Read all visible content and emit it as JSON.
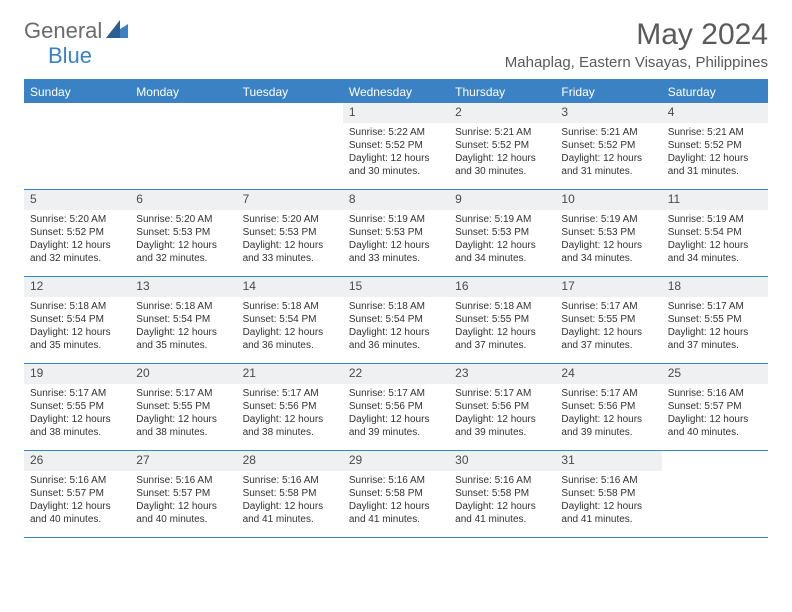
{
  "logo": {
    "text1": "General",
    "text2": "Blue"
  },
  "title": "May 2024",
  "location": "Mahaplag, Eastern Visayas, Philippines",
  "colors": {
    "accent": "#3a82c4",
    "header_text": "#ffffff",
    "daynum_bg": "#eef0f2",
    "body_text": "#333333",
    "title_text": "#5a5a5a"
  },
  "dow": [
    "Sunday",
    "Monday",
    "Tuesday",
    "Wednesday",
    "Thursday",
    "Friday",
    "Saturday"
  ],
  "weeks": [
    [
      {
        "n": "",
        "sr": "",
        "ss": "",
        "dl": ""
      },
      {
        "n": "",
        "sr": "",
        "ss": "",
        "dl": ""
      },
      {
        "n": "",
        "sr": "",
        "ss": "",
        "dl": ""
      },
      {
        "n": "1",
        "sr": "Sunrise: 5:22 AM",
        "ss": "Sunset: 5:52 PM",
        "dl": "Daylight: 12 hours and 30 minutes."
      },
      {
        "n": "2",
        "sr": "Sunrise: 5:21 AM",
        "ss": "Sunset: 5:52 PM",
        "dl": "Daylight: 12 hours and 30 minutes."
      },
      {
        "n": "3",
        "sr": "Sunrise: 5:21 AM",
        "ss": "Sunset: 5:52 PM",
        "dl": "Daylight: 12 hours and 31 minutes."
      },
      {
        "n": "4",
        "sr": "Sunrise: 5:21 AM",
        "ss": "Sunset: 5:52 PM",
        "dl": "Daylight: 12 hours and 31 minutes."
      }
    ],
    [
      {
        "n": "5",
        "sr": "Sunrise: 5:20 AM",
        "ss": "Sunset: 5:52 PM",
        "dl": "Daylight: 12 hours and 32 minutes."
      },
      {
        "n": "6",
        "sr": "Sunrise: 5:20 AM",
        "ss": "Sunset: 5:53 PM",
        "dl": "Daylight: 12 hours and 32 minutes."
      },
      {
        "n": "7",
        "sr": "Sunrise: 5:20 AM",
        "ss": "Sunset: 5:53 PM",
        "dl": "Daylight: 12 hours and 33 minutes."
      },
      {
        "n": "8",
        "sr": "Sunrise: 5:19 AM",
        "ss": "Sunset: 5:53 PM",
        "dl": "Daylight: 12 hours and 33 minutes."
      },
      {
        "n": "9",
        "sr": "Sunrise: 5:19 AM",
        "ss": "Sunset: 5:53 PM",
        "dl": "Daylight: 12 hours and 34 minutes."
      },
      {
        "n": "10",
        "sr": "Sunrise: 5:19 AM",
        "ss": "Sunset: 5:53 PM",
        "dl": "Daylight: 12 hours and 34 minutes."
      },
      {
        "n": "11",
        "sr": "Sunrise: 5:19 AM",
        "ss": "Sunset: 5:54 PM",
        "dl": "Daylight: 12 hours and 34 minutes."
      }
    ],
    [
      {
        "n": "12",
        "sr": "Sunrise: 5:18 AM",
        "ss": "Sunset: 5:54 PM",
        "dl": "Daylight: 12 hours and 35 minutes."
      },
      {
        "n": "13",
        "sr": "Sunrise: 5:18 AM",
        "ss": "Sunset: 5:54 PM",
        "dl": "Daylight: 12 hours and 35 minutes."
      },
      {
        "n": "14",
        "sr": "Sunrise: 5:18 AM",
        "ss": "Sunset: 5:54 PM",
        "dl": "Daylight: 12 hours and 36 minutes."
      },
      {
        "n": "15",
        "sr": "Sunrise: 5:18 AM",
        "ss": "Sunset: 5:54 PM",
        "dl": "Daylight: 12 hours and 36 minutes."
      },
      {
        "n": "16",
        "sr": "Sunrise: 5:18 AM",
        "ss": "Sunset: 5:55 PM",
        "dl": "Daylight: 12 hours and 37 minutes."
      },
      {
        "n": "17",
        "sr": "Sunrise: 5:17 AM",
        "ss": "Sunset: 5:55 PM",
        "dl": "Daylight: 12 hours and 37 minutes."
      },
      {
        "n": "18",
        "sr": "Sunrise: 5:17 AM",
        "ss": "Sunset: 5:55 PM",
        "dl": "Daylight: 12 hours and 37 minutes."
      }
    ],
    [
      {
        "n": "19",
        "sr": "Sunrise: 5:17 AM",
        "ss": "Sunset: 5:55 PM",
        "dl": "Daylight: 12 hours and 38 minutes."
      },
      {
        "n": "20",
        "sr": "Sunrise: 5:17 AM",
        "ss": "Sunset: 5:55 PM",
        "dl": "Daylight: 12 hours and 38 minutes."
      },
      {
        "n": "21",
        "sr": "Sunrise: 5:17 AM",
        "ss": "Sunset: 5:56 PM",
        "dl": "Daylight: 12 hours and 38 minutes."
      },
      {
        "n": "22",
        "sr": "Sunrise: 5:17 AM",
        "ss": "Sunset: 5:56 PM",
        "dl": "Daylight: 12 hours and 39 minutes."
      },
      {
        "n": "23",
        "sr": "Sunrise: 5:17 AM",
        "ss": "Sunset: 5:56 PM",
        "dl": "Daylight: 12 hours and 39 minutes."
      },
      {
        "n": "24",
        "sr": "Sunrise: 5:17 AM",
        "ss": "Sunset: 5:56 PM",
        "dl": "Daylight: 12 hours and 39 minutes."
      },
      {
        "n": "25",
        "sr": "Sunrise: 5:16 AM",
        "ss": "Sunset: 5:57 PM",
        "dl": "Daylight: 12 hours and 40 minutes."
      }
    ],
    [
      {
        "n": "26",
        "sr": "Sunrise: 5:16 AM",
        "ss": "Sunset: 5:57 PM",
        "dl": "Daylight: 12 hours and 40 minutes."
      },
      {
        "n": "27",
        "sr": "Sunrise: 5:16 AM",
        "ss": "Sunset: 5:57 PM",
        "dl": "Daylight: 12 hours and 40 minutes."
      },
      {
        "n": "28",
        "sr": "Sunrise: 5:16 AM",
        "ss": "Sunset: 5:58 PM",
        "dl": "Daylight: 12 hours and 41 minutes."
      },
      {
        "n": "29",
        "sr": "Sunrise: 5:16 AM",
        "ss": "Sunset: 5:58 PM",
        "dl": "Daylight: 12 hours and 41 minutes."
      },
      {
        "n": "30",
        "sr": "Sunrise: 5:16 AM",
        "ss": "Sunset: 5:58 PM",
        "dl": "Daylight: 12 hours and 41 minutes."
      },
      {
        "n": "31",
        "sr": "Sunrise: 5:16 AM",
        "ss": "Sunset: 5:58 PM",
        "dl": "Daylight: 12 hours and 41 minutes."
      },
      {
        "n": "",
        "sr": "",
        "ss": "",
        "dl": ""
      }
    ]
  ]
}
